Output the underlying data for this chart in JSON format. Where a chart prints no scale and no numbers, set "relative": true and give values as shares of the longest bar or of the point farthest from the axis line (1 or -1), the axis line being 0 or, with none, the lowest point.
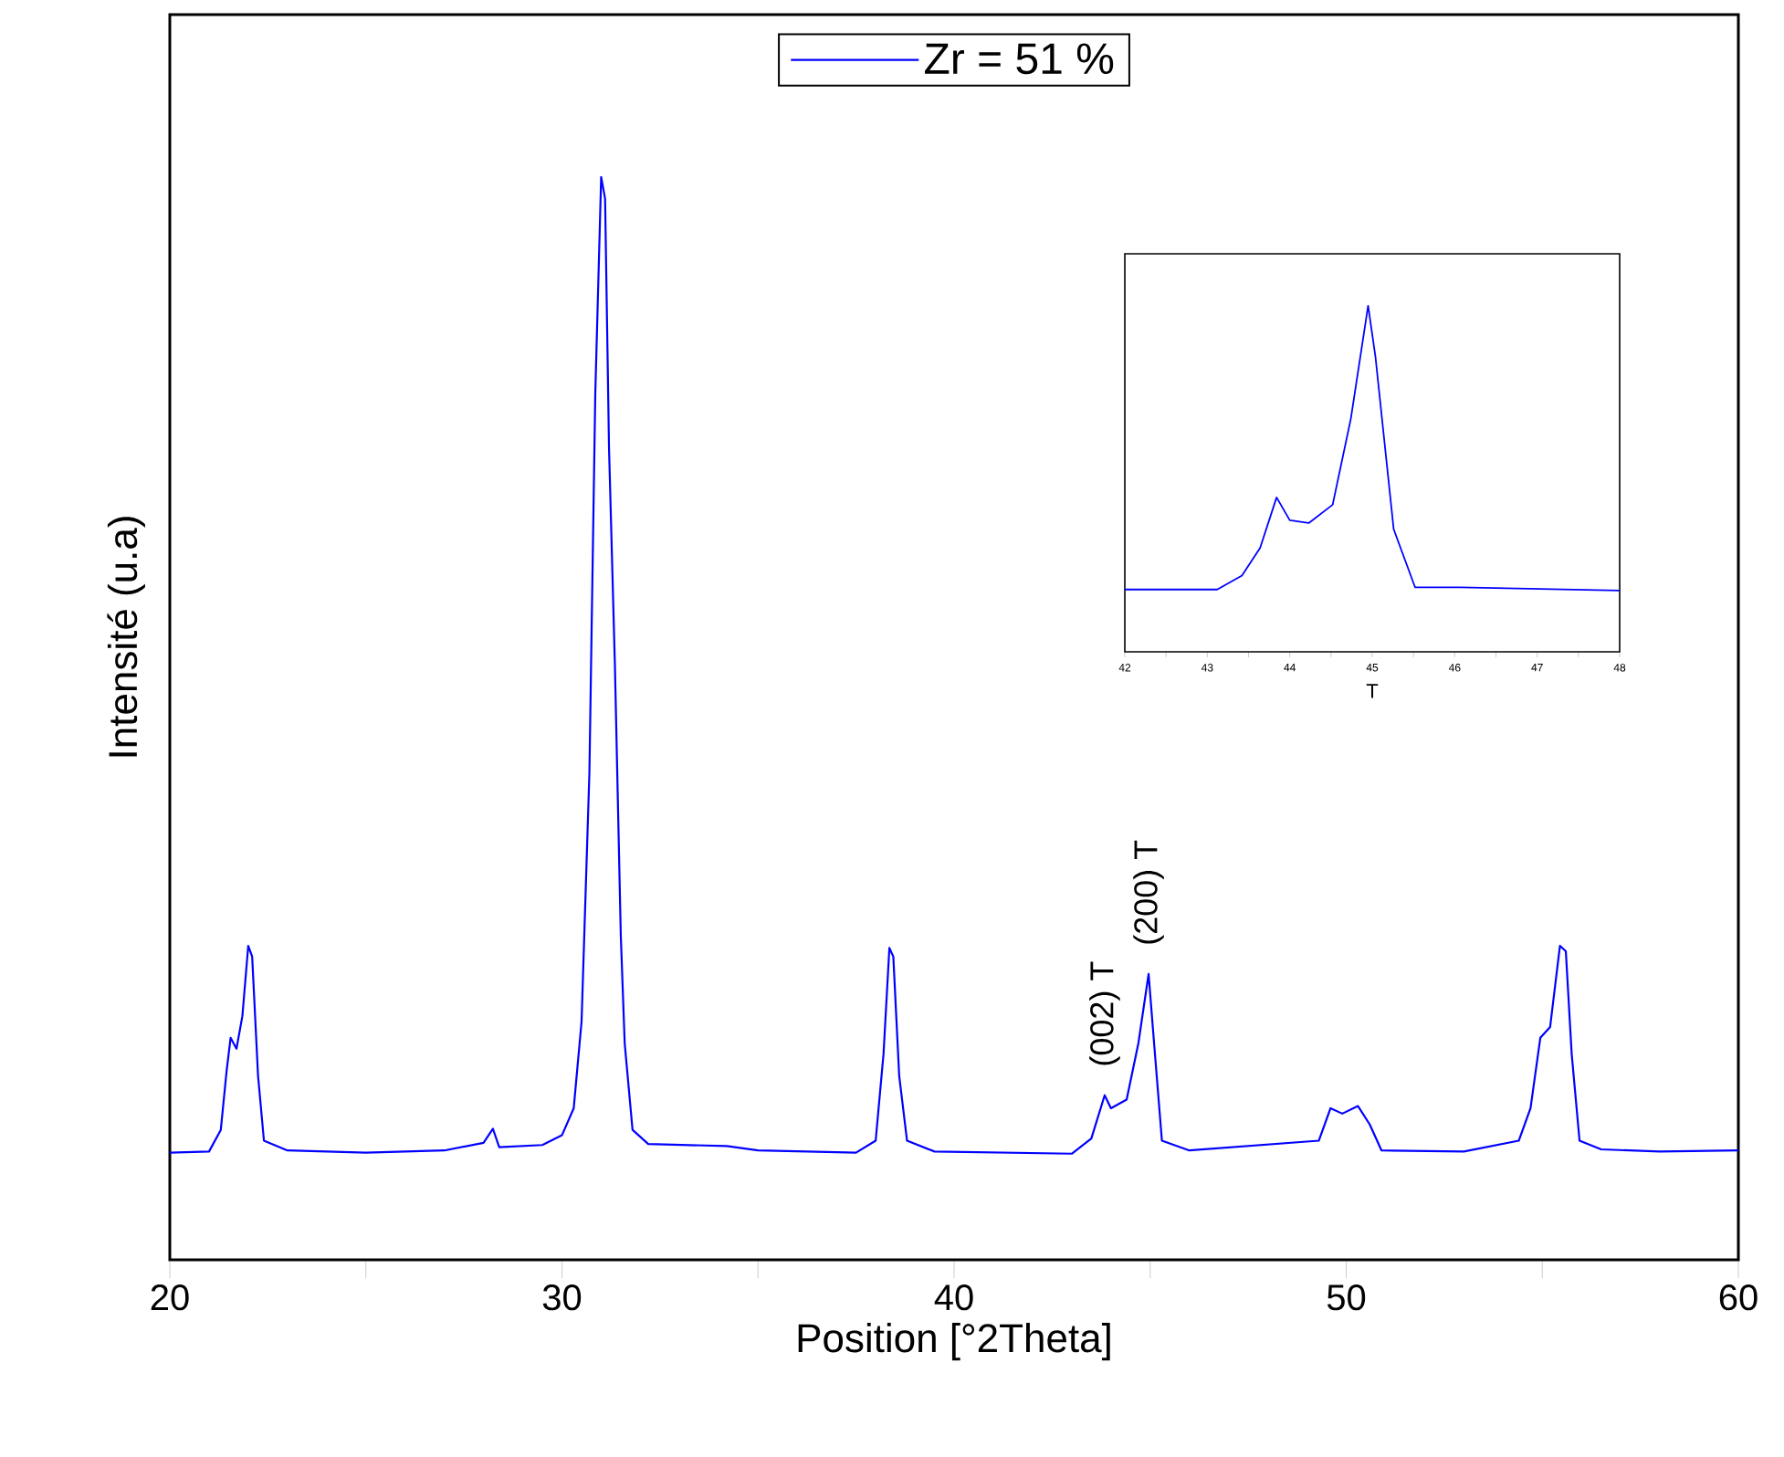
{
  "chart_data": [
    {
      "type": "line",
      "relative": true,
      "xlabel": "Position [°2Theta]",
      "ylabel": "Intensité (u.a)",
      "legend": "top",
      "marker": "none",
      "line_style": "solid",
      "xlim": [
        20,
        60
      ],
      "xticks": [
        20,
        {
          "value": 25,
          "label": null
        },
        30,
        {
          "value": 35,
          "label": null
        },
        40,
        {
          "value": 45,
          "label": null
        },
        50,
        {
          "value": 55,
          "label": null
        },
        60
      ],
      "x": [
        20.0,
        21.0,
        21.3,
        21.45,
        21.55,
        21.7,
        21.85,
        22.0,
        22.1,
        22.25,
        22.4,
        23.0,
        25.0,
        27.0,
        28.0,
        28.24,
        28.4,
        29.5,
        30.0,
        30.3,
        30.5,
        30.7,
        30.85,
        31.0,
        31.1,
        31.2,
        31.35,
        31.5,
        31.6,
        31.8,
        32.2,
        34.2,
        35.0,
        37.5,
        38.0,
        38.2,
        38.35,
        38.45,
        38.6,
        38.8,
        39.5,
        43.0,
        43.5,
        43.84,
        44.0,
        44.4,
        44.7,
        44.96,
        45.1,
        45.3,
        46.0,
        49.3,
        49.6,
        49.9,
        50.3,
        50.6,
        50.9,
        53.0,
        54.4,
        54.7,
        54.95,
        55.2,
        55.45,
        55.6,
        55.75,
        55.95,
        56.5,
        58.0,
        60.0
      ],
      "series": [
        {
          "name": "Zr = 51 %",
          "color": "#0000ff",
          "values": [
            0.099,
            0.1,
            0.12,
            0.175,
            0.205,
            0.195,
            0.225,
            0.29,
            0.28,
            0.17,
            0.11,
            0.101,
            0.099,
            0.101,
            0.108,
            0.121,
            0.104,
            0.106,
            0.115,
            0.14,
            0.22,
            0.45,
            0.8,
            1.0,
            0.98,
            0.75,
            0.55,
            0.3,
            0.2,
            0.12,
            0.107,
            0.105,
            0.101,
            0.099,
            0.11,
            0.19,
            0.288,
            0.28,
            0.17,
            0.11,
            0.1,
            0.098,
            0.112,
            0.152,
            0.14,
            0.148,
            0.2,
            0.264,
            0.2,
            0.11,
            0.101,
            0.11,
            0.14,
            0.135,
            0.142,
            0.125,
            0.101,
            0.1,
            0.11,
            0.14,
            0.205,
            0.215,
            0.29,
            0.285,
            0.19,
            0.11,
            0.102,
            0.1,
            0.101
          ]
        }
      ],
      "annotations": [
        {
          "text": "(002) T",
          "x": 43.84,
          "y": 0.152
        },
        {
          "text": "(200) T",
          "x": 44.96,
          "y": 0.264
        }
      ]
    },
    {
      "type": "line",
      "relative": true,
      "xlabel": "T",
      "marker": "none",
      "line_style": "solid",
      "xlim": [
        42,
        48
      ],
      "xticks": [
        42,
        {
          "value": 42.5,
          "label": null
        },
        43,
        {
          "value": 43.5,
          "label": null
        },
        44,
        {
          "value": 44.5,
          "label": null
        },
        45,
        {
          "value": 45.5,
          "label": null
        },
        46,
        {
          "value": 46.5,
          "label": null
        },
        47,
        {
          "value": 47.5,
          "label": null
        },
        48
      ],
      "x": [
        42.0,
        43.12,
        43.42,
        43.64,
        43.84,
        44.0,
        44.23,
        44.52,
        44.74,
        44.95,
        45.04,
        45.26,
        45.52,
        46.07,
        48.0
      ],
      "series": [
        {
          "color": "#0000ff",
          "values": [
            0.18,
            0.18,
            0.22,
            0.3,
            0.446,
            0.38,
            0.372,
            0.425,
            0.673,
            1.0,
            0.85,
            0.354,
            0.186,
            0.186,
            0.177
          ]
        }
      ]
    }
  ]
}
